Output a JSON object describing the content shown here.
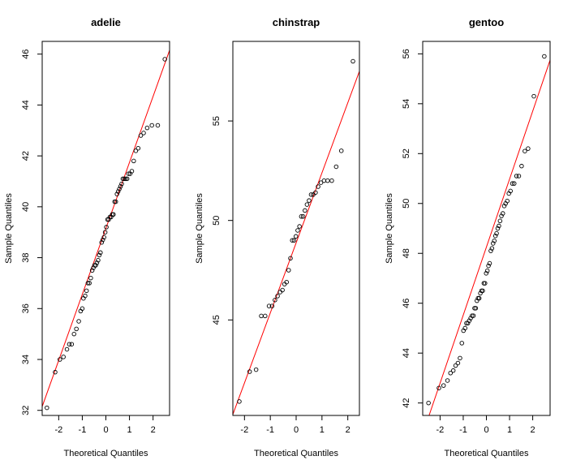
{
  "chart_data": [
    {
      "type": "scatter",
      "title": "adelie",
      "xlabel": "Theoretical Quantiles",
      "ylabel": "Sample Quantiles",
      "xlim": [
        -2.7,
        2.7
      ],
      "ylim": [
        31.8,
        46.5
      ],
      "xticks": [
        -2,
        -1,
        0,
        1,
        2
      ],
      "yticks": [
        32,
        34,
        36,
        38,
        40,
        42,
        44,
        46
      ],
      "line": [
        [
          -2.7,
          32.15
        ],
        [
          2.7,
          46.15
        ]
      ],
      "points": [
        [
          -2.5,
          32.1
        ],
        [
          -2.15,
          33.5
        ],
        [
          -1.95,
          34.0
        ],
        [
          -1.8,
          34.1
        ],
        [
          -1.65,
          34.4
        ],
        [
          -1.55,
          34.6
        ],
        [
          -1.45,
          34.6
        ],
        [
          -1.35,
          35.0
        ],
        [
          -1.25,
          35.2
        ],
        [
          -1.15,
          35.5
        ],
        [
          -1.07,
          35.9
        ],
        [
          -1.0,
          36.0
        ],
        [
          -0.95,
          36.4
        ],
        [
          -0.88,
          36.5
        ],
        [
          -0.82,
          36.7
        ],
        [
          -0.76,
          37.0
        ],
        [
          -0.7,
          37.0
        ],
        [
          -0.64,
          37.2
        ],
        [
          -0.58,
          37.5
        ],
        [
          -0.53,
          37.6
        ],
        [
          -0.48,
          37.7
        ],
        [
          -0.43,
          37.7
        ],
        [
          -0.38,
          37.8
        ],
        [
          -0.33,
          37.9
        ],
        [
          -0.28,
          38.1
        ],
        [
          -0.23,
          38.2
        ],
        [
          -0.18,
          38.6
        ],
        [
          -0.13,
          38.7
        ],
        [
          -0.08,
          38.8
        ],
        [
          -0.03,
          39.0
        ],
        [
          0.02,
          39.2
        ],
        [
          0.07,
          39.5
        ],
        [
          0.12,
          39.5
        ],
        [
          0.17,
          39.6
        ],
        [
          0.22,
          39.6
        ],
        [
          0.27,
          39.7
        ],
        [
          0.32,
          39.7
        ],
        [
          0.37,
          40.2
        ],
        [
          0.42,
          40.2
        ],
        [
          0.47,
          40.5
        ],
        [
          0.52,
          40.6
        ],
        [
          0.57,
          40.7
        ],
        [
          0.62,
          40.8
        ],
        [
          0.67,
          40.9
        ],
        [
          0.72,
          41.1
        ],
        [
          0.78,
          41.1
        ],
        [
          0.84,
          41.1
        ],
        [
          0.9,
          41.1
        ],
        [
          0.96,
          41.3
        ],
        [
          1.03,
          41.3
        ],
        [
          1.1,
          41.4
        ],
        [
          1.18,
          41.8
        ],
        [
          1.27,
          42.2
        ],
        [
          1.37,
          42.3
        ],
        [
          1.48,
          42.8
        ],
        [
          1.6,
          42.9
        ],
        [
          1.75,
          43.1
        ],
        [
          1.95,
          43.2
        ],
        [
          2.2,
          43.2
        ],
        [
          2.5,
          45.8
        ]
      ]
    },
    {
      "type": "scatter",
      "title": "chinstrap",
      "xlabel": "Theoretical Quantiles",
      "ylabel": "Sample Quantiles",
      "xlim": [
        -2.45,
        2.45
      ],
      "ylim": [
        40.2,
        59.0
      ],
      "xticks": [
        -2,
        -1,
        0,
        1,
        2
      ],
      "yticks": [
        45,
        50,
        55
      ],
      "line": [
        [
          -2.45,
          40.25
        ],
        [
          2.45,
          57.5
        ]
      ],
      "points": [
        [
          -2.2,
          40.9
        ],
        [
          -1.8,
          42.4
        ],
        [
          -1.55,
          42.5
        ],
        [
          -1.35,
          45.2
        ],
        [
          -1.2,
          45.2
        ],
        [
          -1.05,
          45.7
        ],
        [
          -0.93,
          45.7
        ],
        [
          -0.82,
          46.0
        ],
        [
          -0.72,
          46.2
        ],
        [
          -0.62,
          46.4
        ],
        [
          -0.53,
          46.5
        ],
        [
          -0.45,
          46.8
        ],
        [
          -0.37,
          46.9
        ],
        [
          -0.29,
          47.5
        ],
        [
          -0.22,
          48.1
        ],
        [
          -0.15,
          49.0
        ],
        [
          -0.08,
          49.0
        ],
        [
          -0.01,
          49.2
        ],
        [
          0.06,
          49.5
        ],
        [
          0.13,
          49.7
        ],
        [
          0.2,
          50.2
        ],
        [
          0.27,
          50.2
        ],
        [
          0.34,
          50.5
        ],
        [
          0.42,
          50.8
        ],
        [
          0.5,
          51.0
        ],
        [
          0.58,
          51.3
        ],
        [
          0.66,
          51.3
        ],
        [
          0.75,
          51.4
        ],
        [
          0.85,
          51.7
        ],
        [
          0.96,
          51.9
        ],
        [
          1.08,
          52.0
        ],
        [
          1.22,
          52.0
        ],
        [
          1.38,
          52.0
        ],
        [
          1.55,
          52.7
        ],
        [
          1.75,
          53.5
        ],
        [
          2.2,
          58.0
        ]
      ]
    },
    {
      "type": "scatter",
      "title": "gentoo",
      "xlabel": "Theoretical Quantiles",
      "ylabel": "Sample Quantiles",
      "xlim": [
        -2.75,
        2.75
      ],
      "ylim": [
        41.5,
        56.5
      ],
      "xticks": [
        -2,
        -1,
        0,
        1,
        2
      ],
      "yticks": [
        42,
        44,
        46,
        48,
        50,
        52,
        54,
        56
      ],
      "line": [
        [
          -2.75,
          40.75
        ],
        [
          2.75,
          55.75
        ]
      ],
      "points": [
        [
          -2.5,
          42.0
        ],
        [
          -2.05,
          42.6
        ],
        [
          -1.85,
          42.7
        ],
        [
          -1.68,
          42.9
        ],
        [
          -1.55,
          43.2
        ],
        [
          -1.43,
          43.3
        ],
        [
          -1.33,
          43.5
        ],
        [
          -1.23,
          43.6
        ],
        [
          -1.14,
          43.8
        ],
        [
          -1.06,
          44.4
        ],
        [
          -0.99,
          44.9
        ],
        [
          -0.92,
          45.0
        ],
        [
          -0.86,
          45.2
        ],
        [
          -0.8,
          45.2
        ],
        [
          -0.74,
          45.3
        ],
        [
          -0.68,
          45.4
        ],
        [
          -0.62,
          45.5
        ],
        [
          -0.56,
          45.5
        ],
        [
          -0.51,
          45.8
        ],
        [
          -0.46,
          45.8
        ],
        [
          -0.41,
          46.1
        ],
        [
          -0.36,
          46.2
        ],
        [
          -0.31,
          46.2
        ],
        [
          -0.26,
          46.4
        ],
        [
          -0.21,
          46.5
        ],
        [
          -0.16,
          46.5
        ],
        [
          -0.11,
          46.8
        ],
        [
          -0.06,
          46.8
        ],
        [
          -0.01,
          47.2
        ],
        [
          0.04,
          47.3
        ],
        [
          0.09,
          47.5
        ],
        [
          0.14,
          47.6
        ],
        [
          0.19,
          48.1
        ],
        [
          0.24,
          48.2
        ],
        [
          0.29,
          48.4
        ],
        [
          0.34,
          48.5
        ],
        [
          0.39,
          48.7
        ],
        [
          0.44,
          48.8
        ],
        [
          0.49,
          49.0
        ],
        [
          0.54,
          49.1
        ],
        [
          0.59,
          49.3
        ],
        [
          0.65,
          49.5
        ],
        [
          0.71,
          49.6
        ],
        [
          0.77,
          49.9
        ],
        [
          0.83,
          50.0
        ],
        [
          0.9,
          50.1
        ],
        [
          0.97,
          50.4
        ],
        [
          1.04,
          50.5
        ],
        [
          1.12,
          50.8
        ],
        [
          1.2,
          50.8
        ],
        [
          1.3,
          51.1
        ],
        [
          1.4,
          51.1
        ],
        [
          1.52,
          51.5
        ],
        [
          1.66,
          52.1
        ],
        [
          1.8,
          52.2
        ],
        [
          2.05,
          54.3
        ],
        [
          2.5,
          55.9
        ]
      ]
    }
  ]
}
